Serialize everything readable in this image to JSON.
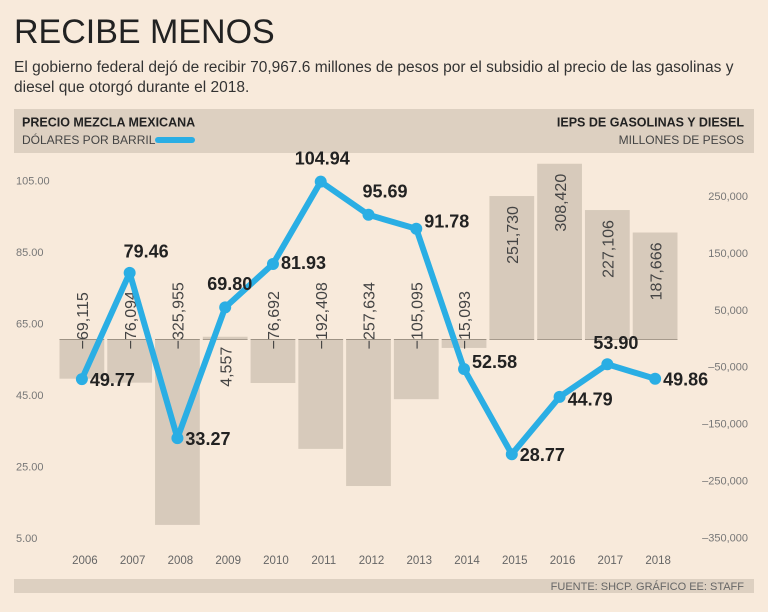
{
  "chart_data": {
    "type": "bar-line",
    "title": "RECIBE MENOS",
    "subtitle": "El gobierno federal dejó de recibir 70,967.6 millones de pesos por el subsidio al precio de las gasolinas y diesel que otorgó durante el 2018.",
    "left_legend": {
      "title": "PRECIO MEZCLA MEXICANA",
      "unit": "DÓLARES POR BARRIL"
    },
    "right_legend": {
      "title": "IEPS DE GASOLINAS Y DIESEL",
      "unit": "MILLONES DE PESOS"
    },
    "source": "FUENTE: SHCP. GRÁFICO EE: STAFF",
    "categories": [
      "2006",
      "2007",
      "2008",
      "2009",
      "2010",
      "2011",
      "2012",
      "2013",
      "2014",
      "2015",
      "2016",
      "2017",
      "2018"
    ],
    "series": [
      {
        "name": "IEPS DE GASOLINAS Y DIESEL",
        "type": "bar",
        "axis": "y2",
        "color": "#d7cabb",
        "values": [
          -69115,
          -76094,
          -325955,
          4557,
          -76692,
          -192408,
          -257634,
          -105095,
          -15093,
          251730,
          308420,
          227106,
          187666
        ],
        "value_labels": [
          "−69,115",
          "−76,094",
          "−325,955",
          "4,557",
          "−76,692",
          "−192,408",
          "−257,634",
          "−105,095",
          "−15,093",
          "251,730",
          "308,420",
          "227,106",
          "187,666"
        ]
      },
      {
        "name": "PRECIO MEZCLA MEXICANA",
        "type": "line",
        "color": "#2aaee4",
        "values": [
          49.77,
          79.46,
          33.27,
          69.8,
          81.93,
          104.94,
          95.69,
          91.78,
          52.58,
          28.77,
          44.79,
          53.9,
          49.86
        ],
        "value_labels": [
          "49.77",
          "79.46",
          "33.27",
          "69.80",
          "81.93",
          "104.94",
          "95.69",
          "91.78",
          "52.58",
          "28.77",
          "44.79",
          "53.90",
          "49.86"
        ]
      }
    ],
    "ylim": [
      2,
      111
    ],
    "yticks": [
      {
        "value": 5,
        "label": "5.00"
      },
      {
        "value": 25,
        "label": "25.00"
      },
      {
        "value": 45,
        "label": "45.00"
      },
      {
        "value": 65,
        "label": "65.00"
      },
      {
        "value": 85,
        "label": "85.00"
      },
      {
        "value": 105,
        "label": "105.00"
      }
    ],
    "y2lim": [
      -370000,
      315000
    ],
    "y2ticks": [
      {
        "value": 250000,
        "label": "250,000"
      },
      {
        "value": 150000,
        "label": "150,000"
      },
      {
        "value": 50000,
        "label": "50,000"
      },
      {
        "value": -50000,
        "label": "–50,000"
      },
      {
        "value": -150000,
        "label": "–150,000"
      },
      {
        "value": -250000,
        "label": "–250,000"
      },
      {
        "value": -350000,
        "label": "–350,000"
      }
    ]
  }
}
